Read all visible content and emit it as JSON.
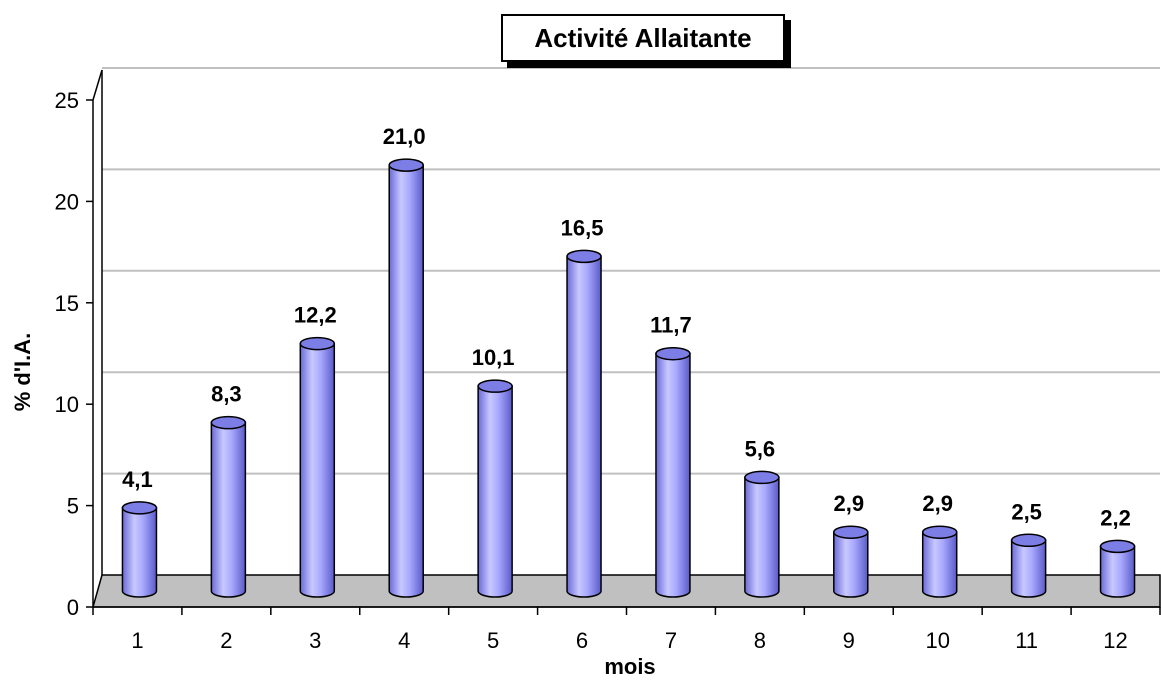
{
  "chart_data": {
    "type": "bar",
    "title": "Activité Allaitante",
    "xlabel": "mois",
    "ylabel": "% d'I.A.",
    "categories": [
      "1",
      "2",
      "3",
      "4",
      "5",
      "6",
      "7",
      "8",
      "9",
      "10",
      "11",
      "12"
    ],
    "values": [
      4.1,
      8.3,
      12.2,
      21.0,
      10.1,
      16.5,
      11.7,
      5.6,
      2.9,
      2.9,
      2.5,
      2.2
    ],
    "data_labels": [
      "4,1",
      "8,3",
      "12,2",
      "21,0",
      "10,1",
      "16,5",
      "11,7",
      "5,6",
      "2,9",
      "2,9",
      "2,5",
      "2,2"
    ],
    "ylim": [
      0,
      25
    ],
    "yticks": [
      0,
      5,
      10,
      15,
      20,
      25
    ],
    "grid": true,
    "bar_color": "#9999ff",
    "floor_color": "#c0c0c0"
  }
}
